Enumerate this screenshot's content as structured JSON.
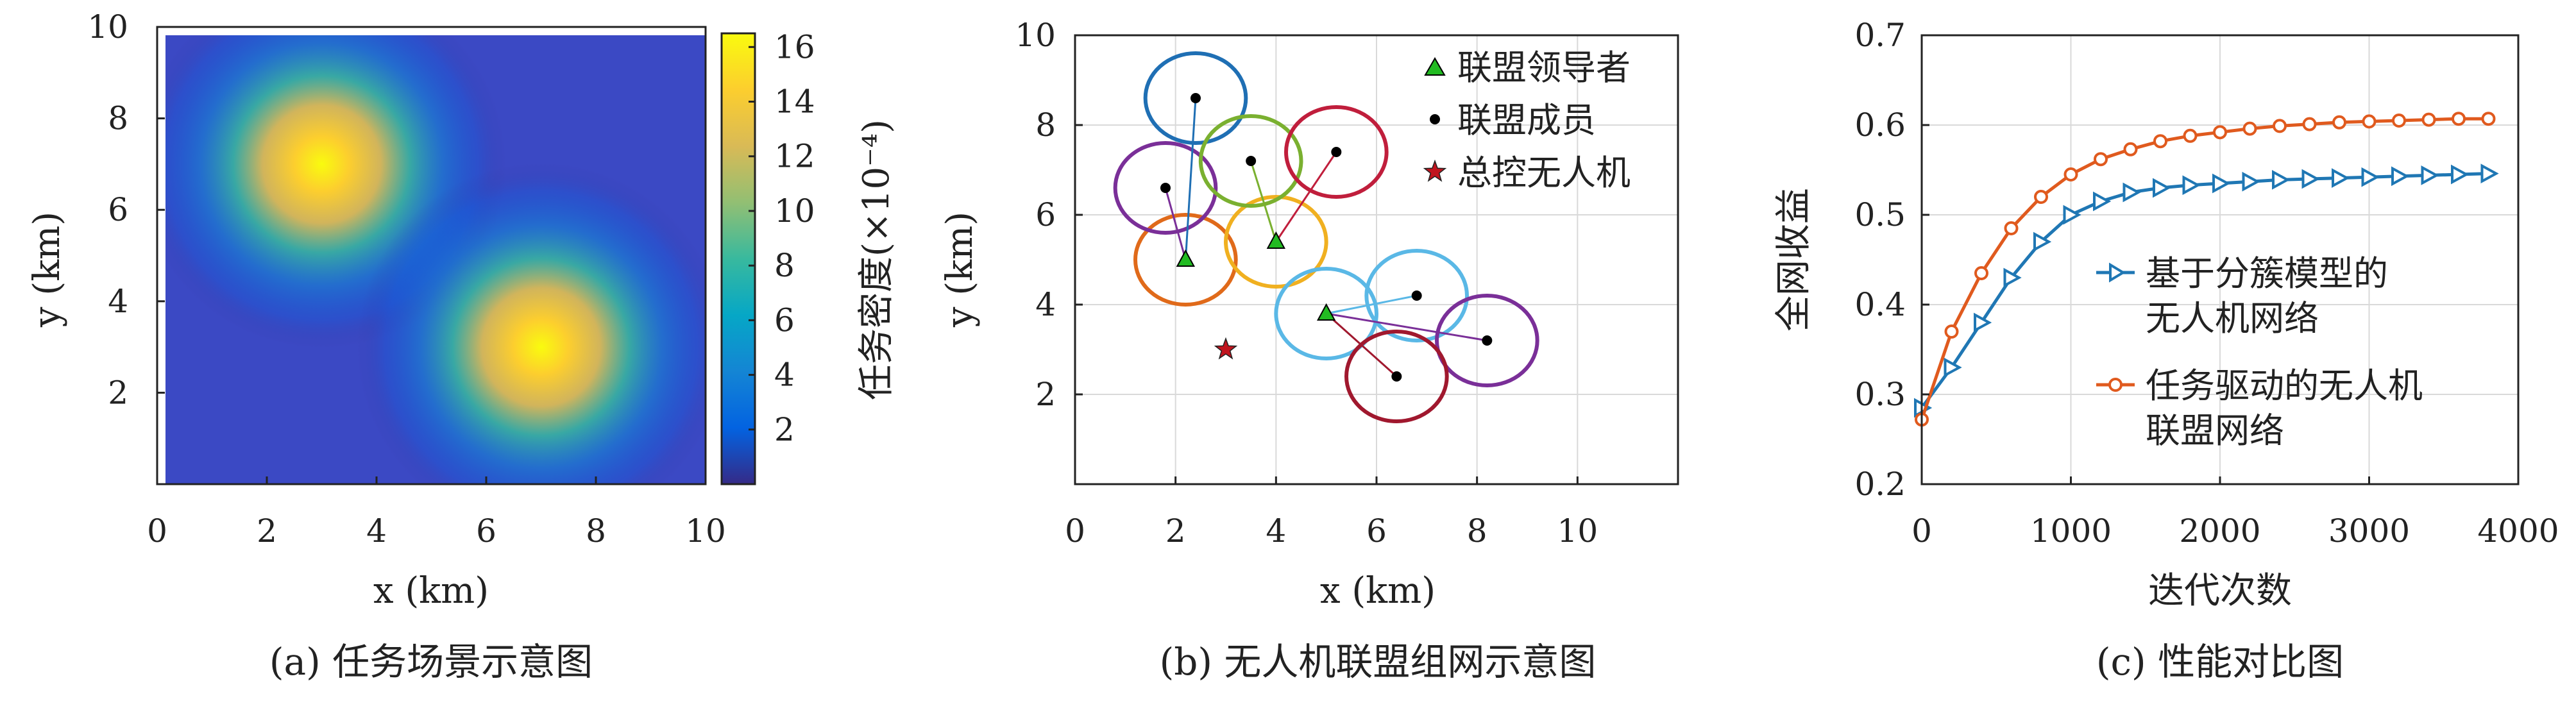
{
  "figure": {
    "colors": {
      "axis": "#222222",
      "grid": "#d9d9d9",
      "member_line": "#555555",
      "leader_marker": "#22bb22",
      "member_marker": "#000000",
      "controller_marker": "#c0141e",
      "series_blue": "#1f77b4",
      "series_orange": "#e05a1e"
    }
  },
  "chart_data": [
    {
      "type": "heatmap",
      "caption": "(a) 任务场景示意图",
      "xlabel": "x (km)",
      "ylabel": "y (km)",
      "xlim": [
        0,
        10
      ],
      "ylim": [
        0,
        10
      ],
      "xticks": [
        "0",
        "2",
        "4",
        "6",
        "8",
        "10"
      ],
      "yticks": [
        "2",
        "4",
        "6",
        "8",
        "10"
      ],
      "colormap": "parula",
      "colorbar": {
        "label": "任务密度(×10⁻⁴)",
        "range": [
          0,
          16.5
        ],
        "ticks": [
          "2",
          "4",
          "6",
          "8",
          "10",
          "12",
          "14",
          "16"
        ]
      },
      "peaks": [
        {
          "x": 3,
          "y": 7,
          "value": 16.2,
          "sigma_km": 1.4
        },
        {
          "x": 7,
          "y": 3,
          "value": 16.2,
          "sigma_km": 1.4
        }
      ],
      "baseline": 0.5,
      "grid": false
    },
    {
      "type": "scatter",
      "caption": "(b) 无人机联盟组网示意图",
      "xlabel": "x (km)",
      "ylabel": "y (km)",
      "xlim": [
        0,
        12
      ],
      "ylim": [
        0,
        10
      ],
      "xticks": [
        "0",
        "2",
        "4",
        "6",
        "8",
        "10"
      ],
      "yticks": [
        "2",
        "4",
        "6",
        "8",
        "10"
      ],
      "grid": true,
      "legend_position": "top-right",
      "legend": [
        "联盟领导者",
        "联盟成员",
        "总控无人机"
      ],
      "leaders": [
        {
          "x": 2.2,
          "y": 5.0,
          "color": "#e06a1a"
        },
        {
          "x": 4.0,
          "y": 5.4,
          "color": "#f0b020"
        },
        {
          "x": 5.0,
          "y": 3.8,
          "color": "#5ab8e6"
        }
      ],
      "members": [
        {
          "x": 2.4,
          "y": 8.6,
          "color": "#1f6fb4",
          "leader": 0
        },
        {
          "x": 1.8,
          "y": 6.6,
          "color": "#7a2f98",
          "leader": 0
        },
        {
          "x": 3.5,
          "y": 7.2,
          "color": "#7ab030",
          "leader": 1
        },
        {
          "x": 5.2,
          "y": 7.4,
          "color": "#c01e3c",
          "leader": 1
        },
        {
          "x": 6.8,
          "y": 4.2,
          "color": "#5ab8e6",
          "leader": 2
        },
        {
          "x": 8.2,
          "y": 3.2,
          "color": "#7a2f98",
          "leader": 2
        },
        {
          "x": 6.4,
          "y": 2.4,
          "color": "#a0182e",
          "leader": 2
        }
      ],
      "controller": {
        "x": 3.0,
        "y": 3.0
      },
      "coverage_radius_km": 1.0
    },
    {
      "type": "line",
      "caption": "(c) 性能对比图",
      "xlabel": "迭代次数",
      "ylabel": "全网收益",
      "xlim": [
        0,
        4000
      ],
      "ylim": [
        0.2,
        0.7
      ],
      "xticks": [
        "0",
        "1000",
        "2000",
        "3000",
        "4000"
      ],
      "yticks": [
        "0.2",
        "0.3",
        "0.4",
        "0.5",
        "0.6",
        "0.7"
      ],
      "grid": true,
      "legend_position": "center-right",
      "x": [
        0,
        200,
        400,
        600,
        800,
        1000,
        1200,
        1400,
        1600,
        1800,
        2000,
        2200,
        2400,
        2600,
        2800,
        3000,
        3200,
        3400,
        3600,
        3800
      ],
      "series": [
        {
          "name": "基于分簇模型的无人机网络",
          "legend_lines": [
            "基于分簇模型的",
            "无人机网络"
          ],
          "marker": "triangle-right",
          "color": "#1f77b4",
          "values": [
            0.285,
            0.33,
            0.38,
            0.43,
            0.47,
            0.5,
            0.515,
            0.525,
            0.53,
            0.533,
            0.535,
            0.537,
            0.539,
            0.54,
            0.541,
            0.542,
            0.543,
            0.544,
            0.545,
            0.546
          ]
        },
        {
          "name": "任务驱动的无人机联盟网络",
          "legend_lines": [
            "任务驱动的无人机",
            "联盟网络"
          ],
          "marker": "circle",
          "color": "#e05a1e",
          "values": [
            0.272,
            0.37,
            0.435,
            0.485,
            0.52,
            0.545,
            0.562,
            0.573,
            0.582,
            0.588,
            0.592,
            0.596,
            0.599,
            0.601,
            0.603,
            0.604,
            0.605,
            0.606,
            0.607,
            0.607
          ]
        }
      ]
    }
  ]
}
